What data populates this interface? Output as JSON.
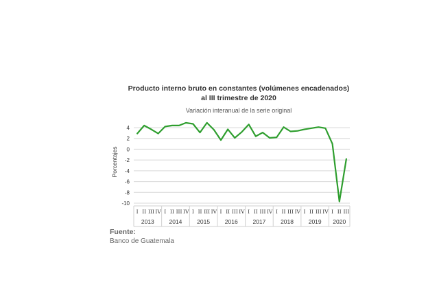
{
  "chart_data": {
    "type": "line",
    "title_line1": "Producto interno bruto en constantes (volúmenes encadenados)",
    "title_line2": "al III trimestre de 2020",
    "subtitle": "Variación interanual de la serie original",
    "ylabel": "Porcentajes",
    "ylim": [
      -10,
      4
    ],
    "yticks": [
      4,
      2,
      0,
      -2,
      -4,
      -6,
      -8,
      -10
    ],
    "grid": true,
    "line_color": "#2e9e2e",
    "quarter_labels": [
      "I",
      "II",
      "III",
      "IV",
      "I",
      "II",
      "III",
      "IV",
      "I",
      "II",
      "III",
      "IV",
      "I",
      "II",
      "III",
      "IV",
      "I",
      "II",
      "III",
      "IV",
      "I",
      "II",
      "III",
      "IV",
      "I",
      "II",
      "III",
      "IV",
      "I",
      "II",
      "III"
    ],
    "years": [
      "2013",
      "2014",
      "2015",
      "2016",
      "2017",
      "2018",
      "2019",
      "2020"
    ],
    "values": [
      2.9,
      4.4,
      3.7,
      2.9,
      4.2,
      4.4,
      4.4,
      4.9,
      4.7,
      3.1,
      4.9,
      3.6,
      1.7,
      3.7,
      2.1,
      3.2,
      4.6,
      2.4,
      3.1,
      2.1,
      2.2,
      4.1,
      3.3,
      3.4,
      3.7,
      3.9,
      4.1,
      3.9,
      1.0,
      -9.7,
      -1.8
    ]
  },
  "source": {
    "label": "Fuente:",
    "text": "Banco de Guatemala"
  }
}
